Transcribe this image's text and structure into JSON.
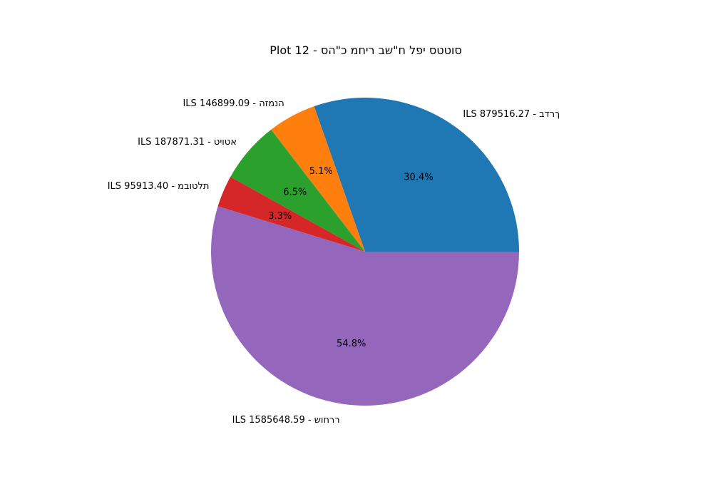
{
  "chart_data": {
    "type": "pie",
    "title": "Plot 12 - סוטטס יפל ח\"שב ריחמ כ\"הס",
    "slices": [
      {
        "label": "ךרדב - 879516.27 ILS",
        "value": 879516.27,
        "percent": "30.4%",
        "color": "#1f77b4"
      },
      {
        "label": "הנמזה - 146899.09 ILS",
        "value": 146899.09,
        "percent": "5.1%",
        "color": "#ff7f0e"
      },
      {
        "label": "אטויט - 187871.31 ILS",
        "value": 187871.31,
        "percent": "6.5%",
        "color": "#2ca02c"
      },
      {
        "label": "תלטובמ - 95913.40 ILS",
        "value": 95913.4,
        "percent": "3.3%",
        "color": "#d62728"
      },
      {
        "label": "ררחוש - 1585648.59 ILS",
        "value": 1585648.59,
        "percent": "54.8%",
        "color": "#9467bd"
      }
    ],
    "start_angle_deg": 0,
    "direction": "counterclockwise",
    "legend": "none"
  }
}
